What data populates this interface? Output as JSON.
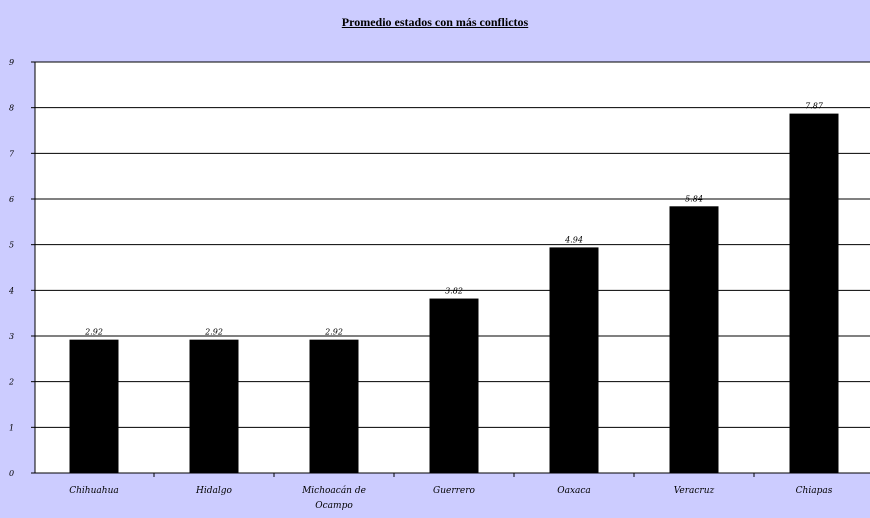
{
  "chart_data": {
    "type": "bar",
    "title": "Promedio estados con más conflictos",
    "xlabel": "",
    "ylabel": "",
    "categories": [
      "Chihuahua",
      "Hidalgo",
      "Michoacán de Ocampo",
      "Guerrero",
      "Oaxaca",
      "Veracruz",
      "Chiapas"
    ],
    "values": [
      2.92,
      2.92,
      2.92,
      3.82,
      4.94,
      5.84,
      7.87
    ],
    "value_labels": [
      "2.92",
      "2.92",
      "2.92",
      "3.82",
      "4.94",
      "5.84",
      "7.87"
    ],
    "ylim": [
      0,
      9
    ],
    "yticks": [
      "0",
      "1",
      "2",
      "3",
      "4",
      "5",
      "6",
      "7",
      "8",
      "9"
    ],
    "grid": true,
    "legend": "none",
    "colors": {
      "background": "#ccccff",
      "plot_background": "#ffffff",
      "bar": "#000000",
      "gridline": "#000000"
    }
  }
}
